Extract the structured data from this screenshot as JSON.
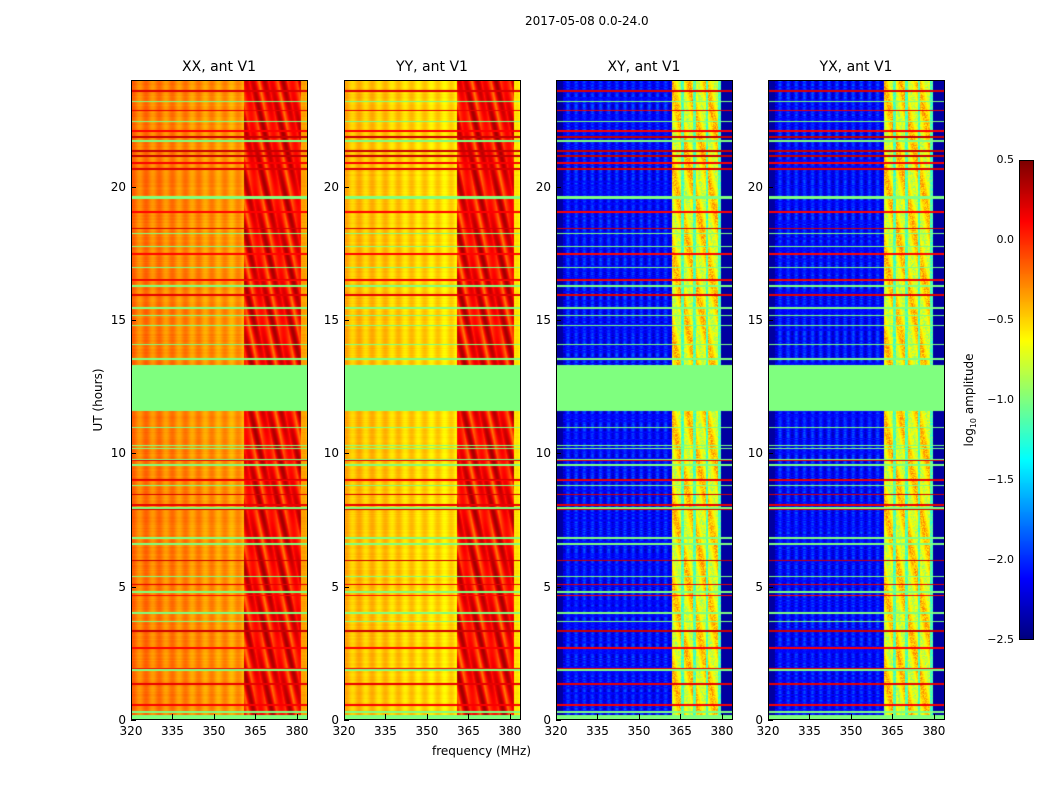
{
  "chart_data": {
    "type": "heatmap",
    "suptitle": "2017-05-08 0.0-24.0",
    "xlabel": "frequency (MHz)",
    "ylabel": "UT (hours)",
    "xlim": [
      320,
      384
    ],
    "ylim": [
      0,
      24
    ],
    "xticks": [
      "320",
      "335",
      "350",
      "365",
      "380"
    ],
    "yticks": [
      "0",
      "5",
      "10",
      "15",
      "20"
    ],
    "panels": [
      {
        "title": "XX, ant V1",
        "kind": "auto"
      },
      {
        "title": "YY, ant V1",
        "kind": "auto"
      },
      {
        "title": "XY, ant V1",
        "kind": "cross"
      },
      {
        "title": "YX, ant V1",
        "kind": "cross"
      }
    ],
    "masked_gap_hours": [
      11.6,
      13.3
    ],
    "colorbar": {
      "label_prefix": "log",
      "label_sub": "10",
      "label_suffix": " amplitude",
      "range": [
        -2.5,
        0.5
      ],
      "ticks": [
        "0.5",
        "0.0",
        "−0.5",
        "−1.0",
        "−1.5",
        "−2.0",
        "−2.5"
      ],
      "colormap": "jet"
    }
  }
}
